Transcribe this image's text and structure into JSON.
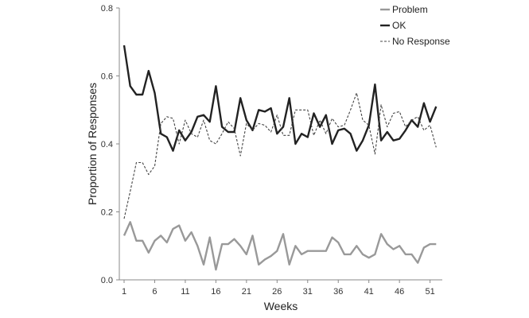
{
  "chart_data": {
    "type": "line",
    "xlabel": "Weeks",
    "ylabel": "Proportion of Responses",
    "xlim": [
      1,
      53
    ],
    "ylim": [
      0,
      0.8
    ],
    "x_ticks": [
      1,
      6,
      11,
      16,
      21,
      26,
      31,
      36,
      41,
      46,
      51
    ],
    "y_ticks": [
      0.0,
      0.2,
      0.4,
      0.6,
      0.8
    ],
    "y_tick_labels": [
      "0.0",
      "0.2",
      "0.4",
      "0.6",
      "0.8"
    ],
    "grid": false,
    "legend_position": "top-right",
    "x": [
      1,
      2,
      3,
      4,
      5,
      6,
      7,
      8,
      9,
      10,
      11,
      12,
      13,
      14,
      15,
      16,
      17,
      18,
      19,
      20,
      21,
      22,
      23,
      24,
      25,
      26,
      27,
      28,
      29,
      30,
      31,
      32,
      33,
      34,
      35,
      36,
      37,
      38,
      39,
      40,
      41,
      42,
      43,
      44,
      45,
      46,
      47,
      48,
      49,
      50,
      51,
      52
    ],
    "series": [
      {
        "name": "Problem",
        "color": "#999999",
        "style": "solid",
        "values": [
          0.13,
          0.17,
          0.115,
          0.115,
          0.08,
          0.115,
          0.13,
          0.11,
          0.15,
          0.16,
          0.115,
          0.14,
          0.1,
          0.045,
          0.125,
          0.03,
          0.105,
          0.105,
          0.12,
          0.1,
          0.075,
          0.13,
          0.045,
          0.06,
          0.07,
          0.085,
          0.135,
          0.045,
          0.1,
          0.075,
          0.085,
          0.085,
          0.085,
          0.085,
          0.125,
          0.11,
          0.075,
          0.075,
          0.1,
          0.075,
          0.065,
          0.075,
          0.135,
          0.105,
          0.09,
          0.1,
          0.075,
          0.075,
          0.05,
          0.095,
          0.105,
          0.105
        ]
      },
      {
        "name": "OK",
        "color": "#222222",
        "style": "solid",
        "values": [
          0.69,
          0.57,
          0.545,
          0.545,
          0.615,
          0.55,
          0.43,
          0.42,
          0.38,
          0.44,
          0.41,
          0.435,
          0.48,
          0.485,
          0.465,
          0.57,
          0.45,
          0.435,
          0.435,
          0.535,
          0.47,
          0.44,
          0.5,
          0.495,
          0.505,
          0.43,
          0.45,
          0.535,
          0.4,
          0.43,
          0.42,
          0.49,
          0.45,
          0.485,
          0.4,
          0.44,
          0.445,
          0.43,
          0.38,
          0.41,
          0.455,
          0.575,
          0.41,
          0.435,
          0.41,
          0.415,
          0.44,
          0.47,
          0.45,
          0.52,
          0.465,
          0.51
        ]
      },
      {
        "name": "No Response",
        "color": "#444444",
        "style": "dashed",
        "values": [
          0.18,
          0.26,
          0.345,
          0.345,
          0.31,
          0.335,
          0.46,
          0.48,
          0.475,
          0.4,
          0.47,
          0.43,
          0.42,
          0.47,
          0.41,
          0.4,
          0.43,
          0.465,
          0.445,
          0.365,
          0.46,
          0.44,
          0.46,
          0.455,
          0.435,
          0.485,
          0.425,
          0.425,
          0.5,
          0.5,
          0.5,
          0.425,
          0.47,
          0.43,
          0.475,
          0.45,
          0.455,
          0.5,
          0.55,
          0.47,
          0.455,
          0.37,
          0.515,
          0.45,
          0.49,
          0.495,
          0.45,
          0.47,
          0.48,
          0.44,
          0.455,
          0.39
        ]
      }
    ]
  }
}
